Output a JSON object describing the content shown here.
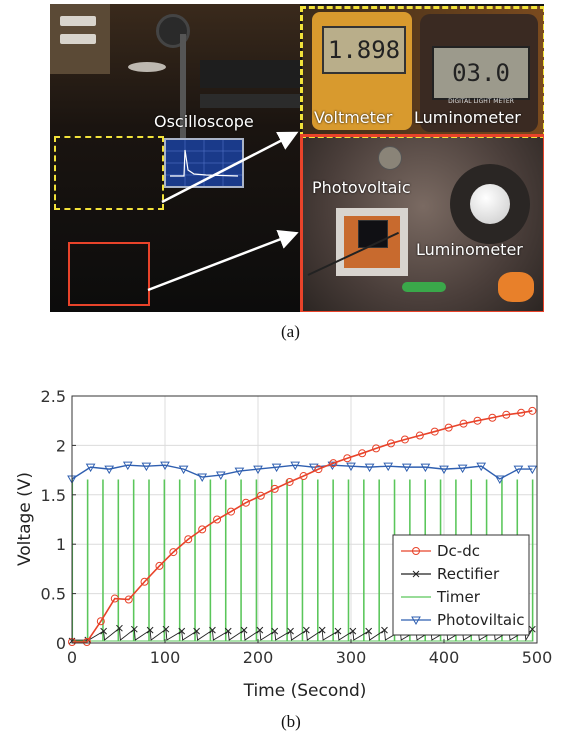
{
  "figure_a": {
    "labels": {
      "oscilloscope": "Oscilloscope",
      "voltmeter": "Voltmeter",
      "luminometer_top": "Luminometer",
      "photovoltaic": "Photovoltaic",
      "luminometer_bottom": "Luminometer"
    },
    "voltmeter_display": "1.898",
    "light_meter_display": "03.0",
    "light_meter_brand": "DIGITAL LIGHT METER",
    "colors": {
      "dashed_box": "#f2e23a",
      "solid_box": "#e8432a",
      "arrow": "#ffffff"
    },
    "caption": "(a)"
  },
  "figure_b": {
    "caption": "(b)"
  },
  "chart_data": {
    "type": "line",
    "xlabel": "Time (Second)",
    "ylabel": "Voltage (V)",
    "xlim": [
      0,
      500
    ],
    "ylim": [
      0,
      2.5
    ],
    "xticks": [
      0,
      100,
      200,
      300,
      400,
      500
    ],
    "yticks": [
      0,
      0.5,
      1,
      1.5,
      2,
      2.5
    ],
    "ytick_labels": [
      "0",
      "0.5",
      "1",
      "1.5",
      "2",
      "2.5"
    ],
    "grid": true,
    "legend_position": "bottom-right",
    "timer_period_s": 16.5,
    "series": [
      {
        "name": "Dc-dc",
        "color": "#e8432a",
        "marker": "circle",
        "x": [
          0,
          16,
          31,
          46,
          61,
          78,
          94,
          109,
          125,
          140,
          156,
          171,
          187,
          203,
          218,
          234,
          249,
          265,
          281,
          296,
          312,
          327,
          343,
          358,
          374,
          390,
          405,
          421,
          436,
          452,
          467,
          483,
          495
        ],
        "y": [
          0.01,
          0.01,
          0.22,
          0.45,
          0.44,
          0.62,
          0.78,
          0.92,
          1.05,
          1.15,
          1.25,
          1.33,
          1.42,
          1.49,
          1.56,
          1.63,
          1.69,
          1.76,
          1.82,
          1.87,
          1.92,
          1.97,
          2.02,
          2.06,
          2.1,
          2.14,
          2.18,
          2.22,
          2.25,
          2.28,
          2.31,
          2.33,
          2.35
        ]
      },
      {
        "name": "Rectifier",
        "color": "#222222",
        "marker": "x",
        "x": [
          0,
          17,
          34,
          51,
          67,
          84,
          101,
          118,
          134,
          151,
          168,
          185,
          202,
          218,
          235,
          252,
          269,
          286,
          302,
          319,
          336,
          353,
          370,
          386,
          403,
          420,
          437,
          454,
          470,
          487,
          495
        ],
        "y": [
          0.02,
          0.03,
          0.12,
          0.15,
          0.14,
          0.13,
          0.14,
          0.12,
          0.12,
          0.13,
          0.12,
          0.13,
          0.13,
          0.12,
          0.12,
          0.13,
          0.13,
          0.12,
          0.12,
          0.12,
          0.13,
          0.12,
          0.12,
          0.12,
          0.12,
          0.12,
          0.12,
          0.12,
          0.12,
          0.12,
          0.14
        ]
      },
      {
        "name": "Timer",
        "color": "#5ac65a",
        "marker": "none",
        "high": 1.65,
        "low": 0.02
      },
      {
        "name": "Photoviltaic",
        "color": "#2f5fb0",
        "marker": "triangle-down",
        "x": [
          0,
          20,
          40,
          60,
          80,
          100,
          120,
          140,
          160,
          180,
          200,
          220,
          240,
          260,
          280,
          300,
          320,
          340,
          360,
          380,
          400,
          420,
          440,
          460,
          480,
          495
        ],
        "y": [
          1.66,
          1.78,
          1.76,
          1.8,
          1.79,
          1.8,
          1.76,
          1.68,
          1.7,
          1.74,
          1.76,
          1.78,
          1.8,
          1.78,
          1.8,
          1.79,
          1.78,
          1.79,
          1.78,
          1.78,
          1.76,
          1.77,
          1.79,
          1.66,
          1.76,
          1.76
        ]
      }
    ]
  }
}
